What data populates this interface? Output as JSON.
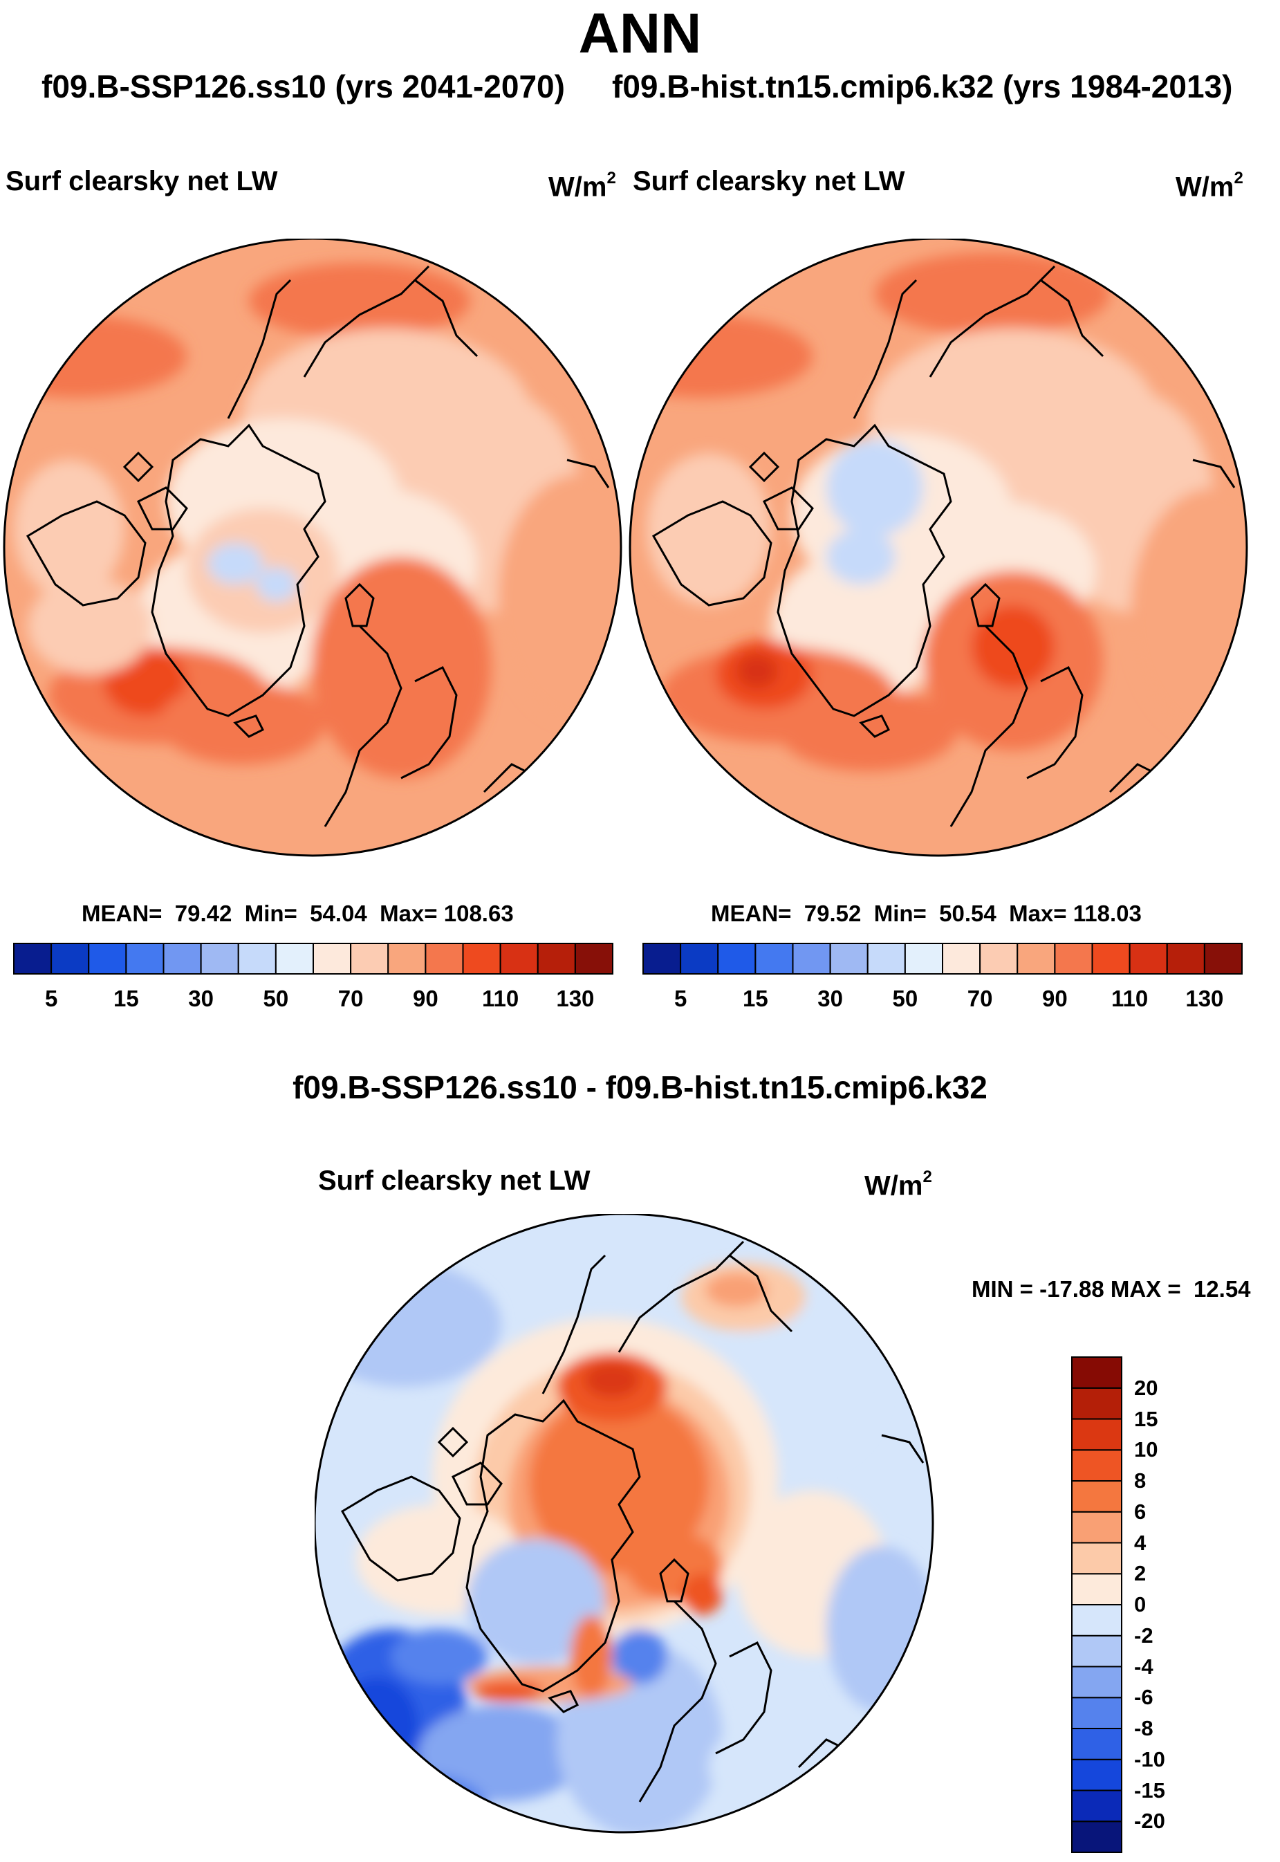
{
  "title": "ANN",
  "case_a_label": "f09.B-SSP126.ss10 (yrs 2041-2070)",
  "case_b_label": "f09.B-hist.tn15.cmip6.k32 (yrs 1984-2013)",
  "diff_title": "f09.B-SSP126.ss10 - f09.B-hist.tn15.cmip6.k32",
  "variable": "Surf clearsky net LW",
  "units_base": "W/m",
  "units_exp": "2",
  "panels": [
    {
      "mean_label": "MEAN=",
      "mean": "79.42",
      "min_label": "Min=",
      "min": "54.04",
      "max_label": "Max=",
      "max": "108.63"
    },
    {
      "mean_label": "MEAN=",
      "mean": "79.52",
      "min_label": "Min=",
      "min": "50.54",
      "max_label": "Max=",
      "max": "118.03"
    }
  ],
  "diff_stats": "MIN = -17.88 MAX =  12.54",
  "colorbar_abs": {
    "colors": [
      "#081d8f",
      "#0b3bc4",
      "#1f5ae8",
      "#4479f0",
      "#7197f2",
      "#9fb9f3",
      "#c6dafa",
      "#e3f0fc",
      "#fde9dc",
      "#fcccb3",
      "#f9a67d",
      "#f4774d",
      "#ee4a1f",
      "#d83114",
      "#b61f0a",
      "#871008"
    ],
    "ticks": [
      "5",
      "15",
      "30",
      "50",
      "70",
      "90",
      "110",
      "130"
    ]
  },
  "colorbar_diff": {
    "colors": [
      "#08157a",
      "#0b2ab8",
      "#1547dc",
      "#2f61e6",
      "#5582ed",
      "#84a6f1",
      "#b0c8f6",
      "#d6e6fb",
      "#fdeadb",
      "#fccaa9",
      "#f9a074",
      "#f4773f",
      "#ee5524",
      "#db3812",
      "#b41f08",
      "#860b04"
    ],
    "ticks": [
      "-20",
      "-15",
      "-10",
      "-8",
      "-6",
      "-4",
      "-2",
      "0",
      "2",
      "4",
      "6",
      "8",
      "10",
      "15",
      "20"
    ]
  },
  "chart_data": {
    "type": "map",
    "projection": "north polar stereographic",
    "season": "ANN",
    "panels": [
      {
        "case": "f09.B-SSP126.ss10 (yrs 2041-2070)",
        "variable": "Surf clearsky net LW",
        "units": "W/m2",
        "mean": 79.42,
        "min": 54.04,
        "max": 108.63
      },
      {
        "case": "f09.B-hist.tn15.cmip6.k32 (yrs 1984-2013)",
        "variable": "Surf clearsky net LW",
        "units": "W/m2",
        "mean": 79.52,
        "min": 50.54,
        "max": 118.03
      },
      {
        "case": "f09.B-SSP126.ss10 - f09.B-hist.tn15.cmip6.k32",
        "variable": "Surf clearsky net LW",
        "units": "W/m2",
        "min": -17.88,
        "max": 12.54
      }
    ],
    "abs_levels": [
      5,
      15,
      30,
      50,
      70,
      90,
      110,
      130
    ],
    "diff_levels": [
      -20,
      -15,
      -10,
      -8,
      -6,
      -4,
      -2,
      0,
      2,
      4,
      6,
      8,
      10,
      15,
      20
    ]
  }
}
